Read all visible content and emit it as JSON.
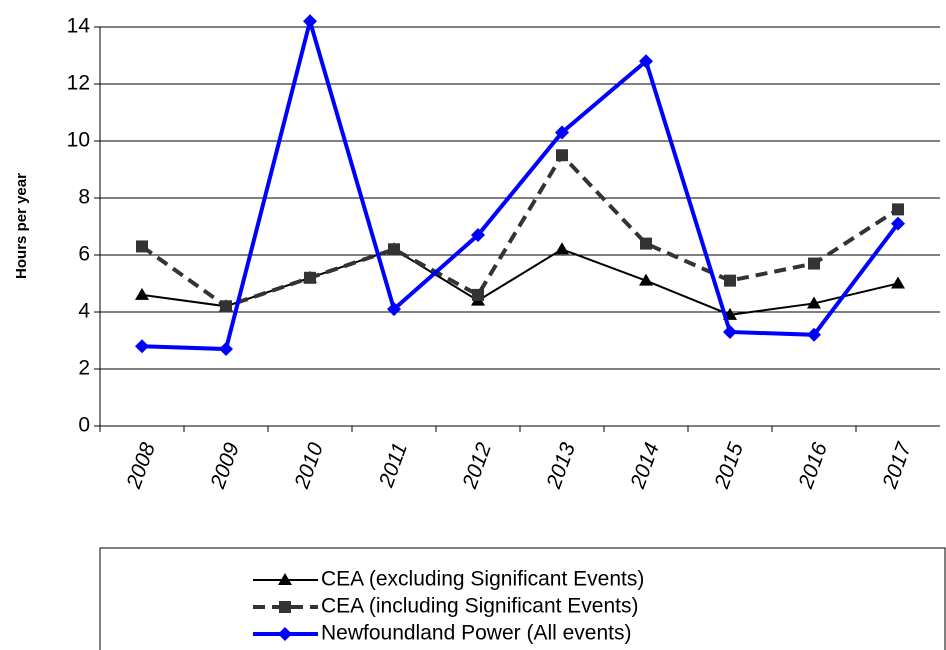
{
  "chart_data": {
    "type": "line",
    "y_label": "Hours per year",
    "categories": [
      "2008",
      "2009",
      "2010",
      "2011",
      "2012",
      "2013",
      "2014",
      "2015",
      "2016",
      "2017"
    ],
    "series": [
      {
        "name": "CEA (excluding Significant Events)",
        "color": "#000000",
        "values": [
          4.6,
          4.2,
          5.2,
          6.2,
          4.4,
          6.2,
          5.1,
          3.9,
          4.3,
          5.0
        ]
      },
      {
        "name": "CEA (including Significant Events)",
        "color": "#333333",
        "values": [
          6.3,
          4.2,
          5.2,
          6.2,
          4.6,
          9.5,
          6.4,
          5.1,
          5.7,
          7.6
        ]
      },
      {
        "name": "Newfoundland Power (All events)",
        "color": "#0000ff",
        "values": [
          2.8,
          2.7,
          14.2,
          4.1,
          6.7,
          10.3,
          12.8,
          3.3,
          3.2,
          7.1
        ]
      }
    ],
    "ylim": [
      0,
      14
    ],
    "yticks": [
      0,
      2,
      4,
      6,
      8,
      10,
      12,
      14
    ],
    "grid": true,
    "legend": "bottom"
  }
}
